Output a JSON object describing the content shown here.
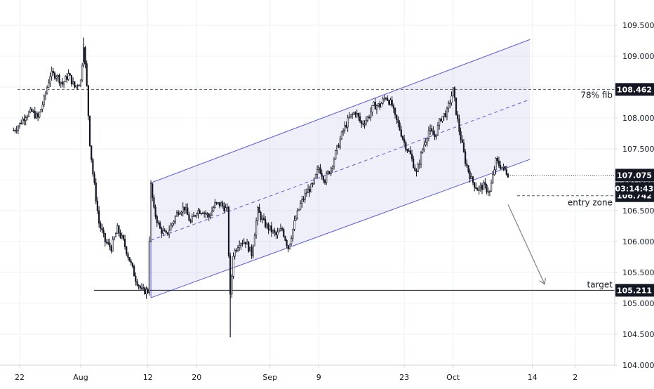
{
  "chart_data": {
    "type": "candlestick",
    "y_axis": {
      "ticks": [
        "104.000",
        "104.500",
        "105.000",
        "105.500",
        "106.000",
        "106.500",
        "107.000",
        "107.500",
        "108.000",
        "108.500",
        "109.000",
        "109.500"
      ],
      "ylim": [
        103.98,
        110.05
      ]
    },
    "x_axis": {
      "ticks": [
        {
          "label": "22",
          "day": -10
        },
        {
          "label": "Aug",
          "day": 0
        },
        {
          "label": "12",
          "day": 11
        },
        {
          "label": "20",
          "day": 19
        },
        {
          "label": "Sep",
          "day": 31
        },
        {
          "label": "9",
          "day": 39
        },
        {
          "label": "23",
          "day": 53
        },
        {
          "label": "Oct",
          "day": 61
        },
        {
          "label": "14",
          "day": 74
        },
        {
          "label": "2",
          "day": 81
        }
      ]
    },
    "price_path": [
      [
        -11,
        107.8
      ],
      [
        -10,
        107.9
      ],
      [
        -9,
        108.05
      ],
      [
        -8,
        108.1
      ],
      [
        -7,
        108.0
      ],
      [
        -6,
        108.3
      ],
      [
        -5,
        108.7
      ],
      [
        -4,
        108.7
      ],
      [
        -3,
        108.55
      ],
      [
        -2,
        108.7
      ],
      [
        -1,
        108.5
      ],
      [
        0,
        108.6
      ],
      [
        0.5,
        109.2
      ],
      [
        1,
        108.5
      ],
      [
        1.5,
        107.6
      ],
      [
        2,
        107.1
      ],
      [
        2.5,
        106.7
      ],
      [
        3,
        106.3
      ],
      [
        4,
        106.0
      ],
      [
        5,
        105.9
      ],
      [
        6,
        106.2
      ],
      [
        7,
        106.0
      ],
      [
        8,
        105.7
      ],
      [
        9,
        105.4
      ],
      [
        10,
        105.2
      ],
      [
        11,
        105.2
      ],
      [
        11.5,
        106.9
      ],
      [
        12,
        106.5
      ],
      [
        13,
        106.2
      ],
      [
        14,
        106.1
      ],
      [
        15,
        106.3
      ],
      [
        16,
        106.5
      ],
      [
        17,
        106.55
      ],
      [
        18,
        106.3
      ],
      [
        19,
        106.5
      ],
      [
        20,
        106.5
      ],
      [
        21,
        106.4
      ],
      [
        22,
        106.6
      ],
      [
        23,
        106.6
      ],
      [
        24,
        106.5
      ],
      [
        24.5,
        105.1
      ],
      [
        25,
        105.8
      ],
      [
        26,
        106.0
      ],
      [
        27,
        106.0
      ],
      [
        28,
        105.8
      ],
      [
        29,
        106.5
      ],
      [
        30,
        106.3
      ],
      [
        31,
        106.2
      ],
      [
        32,
        106.1
      ],
      [
        33,
        106.2
      ],
      [
        34,
        105.9
      ],
      [
        35,
        106.3
      ],
      [
        36,
        106.6
      ],
      [
        37,
        106.8
      ],
      [
        38,
        106.9
      ],
      [
        39,
        107.2
      ],
      [
        40,
        107.0
      ],
      [
        41,
        107.2
      ],
      [
        42,
        107.5
      ],
      [
        43,
        107.8
      ],
      [
        44,
        108.0
      ],
      [
        45,
        108.1
      ],
      [
        46,
        107.9
      ],
      [
        47,
        108.0
      ],
      [
        48,
        108.2
      ],
      [
        49,
        108.2
      ],
      [
        50,
        108.35
      ],
      [
        51,
        108.2
      ],
      [
        51.5,
        108.0
      ],
      [
        52,
        107.9
      ],
      [
        53,
        107.6
      ],
      [
        54,
        107.4
      ],
      [
        55,
        107.1
      ],
      [
        56,
        107.5
      ],
      [
        57,
        107.8
      ],
      [
        58,
        107.7
      ],
      [
        59,
        108.0
      ],
      [
        60,
        108.1
      ],
      [
        61,
        108.45
      ],
      [
        61.5,
        108.1
      ],
      [
        62,
        107.8
      ],
      [
        63,
        107.3
      ],
      [
        64,
        107.0
      ],
      [
        65,
        106.85
      ],
      [
        66,
        106.9
      ],
      [
        67,
        106.8
      ],
      [
        68,
        107.3
      ],
      [
        69,
        107.2
      ],
      [
        70,
        107.1
      ]
    ],
    "price_high": 109.3,
    "price_low": 104.45,
    "current_price": "107.075",
    "countdown": "03:14:43",
    "levels": [
      {
        "price": 108.462,
        "label": "108.462",
        "annotation": "78% fib",
        "style": "dashed"
      },
      {
        "price": 106.742,
        "label": "106.742",
        "annotation": "entry zone",
        "style": "dashed"
      },
      {
        "price": 105.211,
        "label": "105.211",
        "annotation": "target",
        "style": "solid"
      }
    ],
    "channel": {
      "upper": {
        "d1": 11.5,
        "p1": 106.95,
        "d2": 73.6,
        "p2": 109.27
      },
      "lower": {
        "d1": 11.5,
        "p1": 105.09,
        "d2": 73.6,
        "p2": 107.33
      },
      "mid_dashed": true,
      "color": "#5b5bd6",
      "fill": "rgba(147,147,220,0.15)"
    },
    "projection_arrow": {
      "from": [
        70,
        106.6
      ],
      "to": [
        76,
        105.31
      ],
      "color": "#808080"
    },
    "colors": {
      "candles": "#131722",
      "grid": "#eef0f3",
      "axis_label_bg": "#131722",
      "axis_label_fg": "#ffffff"
    }
  }
}
